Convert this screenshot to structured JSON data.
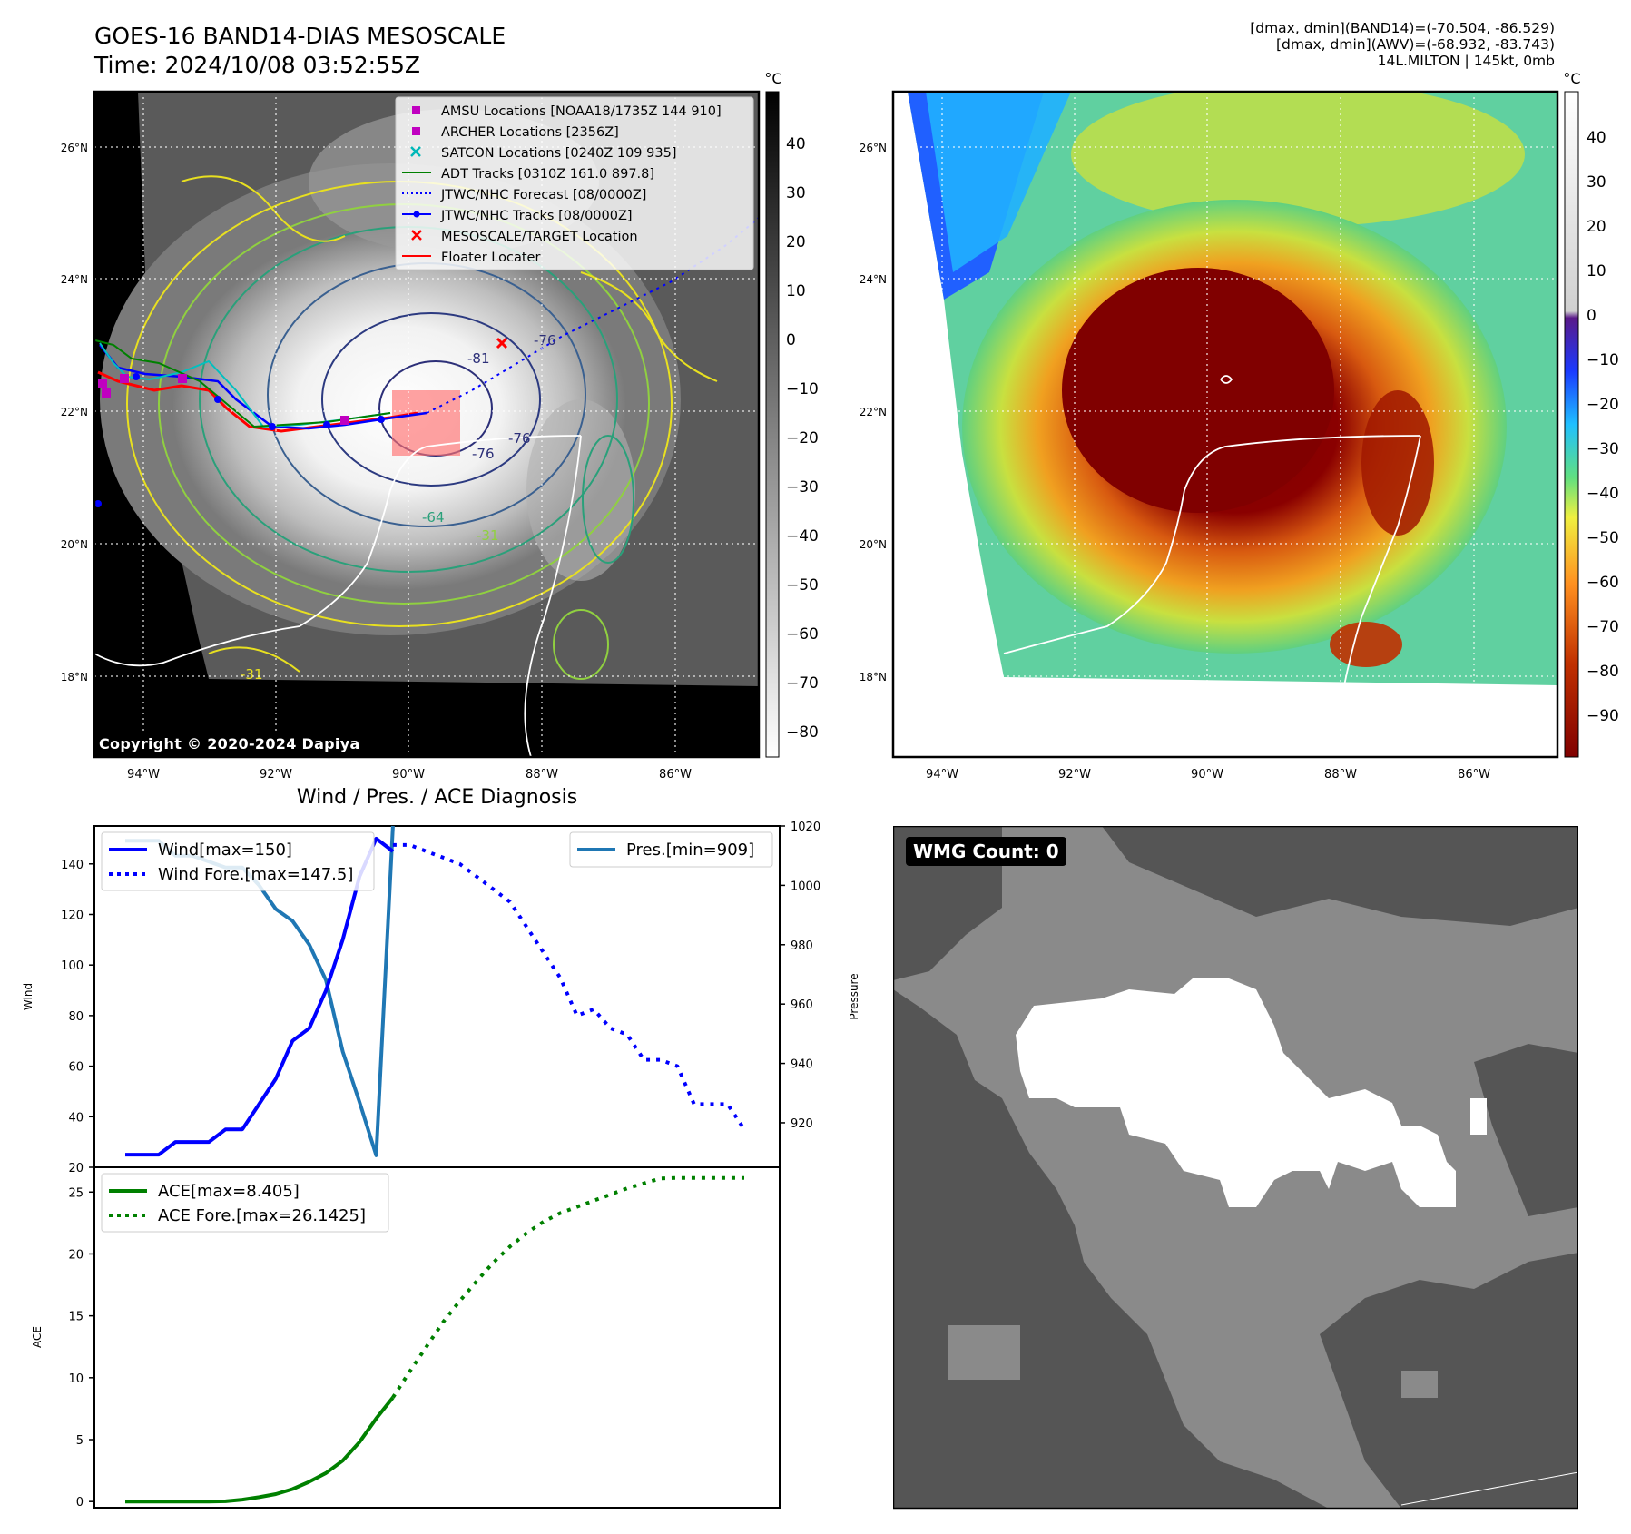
{
  "header": {
    "title_line1": "GOES-16 BAND14-DIAS MESOSCALE",
    "title_line2": "Time: 2024/10/08 03:52:55Z",
    "meta_line1": "[dmax, dmin](BAND14)=(-70.504, -86.529)",
    "meta_line2": "[dmax, dmin](AWV)=(-68.932, -83.743)",
    "meta_line3": "14L.MILTON | 145kt, 0mb"
  },
  "map": {
    "lat_labels": [
      "26°N",
      "24°N",
      "22°N",
      "20°N",
      "18°N"
    ],
    "lon_labels": [
      "94°W",
      "92°W",
      "90°W",
      "88°W",
      "86°W"
    ],
    "contour_labels": [
      "-76",
      "-81",
      "-76",
      "-76",
      "-64",
      "-31",
      "-31"
    ],
    "copyright": "Copyright © 2020-2024 Dapiya",
    "legend": [
      {
        "label": "AMSU Locations [NOAA18/1735Z 144 910]",
        "color": "#c000c0"
      },
      {
        "label": "ARCHER Locations [2356Z]",
        "color": "#c000c0"
      },
      {
        "label": "SATCON Locations [0240Z 109 935]",
        "color": "#00b8b8"
      },
      {
        "label": "ADT Tracks [0310Z 161.0 897.8]",
        "color": "#008000"
      },
      {
        "label": "JTWC/NHC Forecast [08/0000Z]",
        "color": "#0000ff"
      },
      {
        "label": "JTWC/NHC Tracks [08/0000Z]",
        "color": "#0000ff"
      },
      {
        "label": "MESOSCALE/TARGET Location",
        "color": "#ff0000"
      },
      {
        "label": "Floater Locater",
        "color": "#ff0000"
      }
    ]
  },
  "colorbar_left": {
    "unit": "°C",
    "ticks": [
      "40",
      "30",
      "20",
      "10",
      "0",
      "−10",
      "−20",
      "−30",
      "−40",
      "−50",
      "−60",
      "−70",
      "−80"
    ]
  },
  "colorbar_right": {
    "unit": "°C",
    "ticks": [
      "40",
      "30",
      "20",
      "10",
      "0",
      "−10",
      "−20",
      "−30",
      "−40",
      "−50",
      "−60",
      "−70",
      "−80",
      "−90"
    ]
  },
  "chart_data": [
    {
      "type": "line",
      "title": "Wind / Pres. / ACE Diagnosis",
      "ylabel": "Wind",
      "ylabel_right": "Pressure",
      "ylim": [
        20,
        155
      ],
      "ylim_right": [
        905,
        1020
      ],
      "y_ticks": [
        "20",
        "40",
        "60",
        "80",
        "100",
        "120",
        "140"
      ],
      "y_ticks_right": [
        "920",
        "940",
        "960",
        "980",
        "1000",
        "1020"
      ],
      "legend_wind": [
        "Wind[max=150]",
        "Wind Fore.[max=147.5]"
      ],
      "legend_pres": [
        "Pres.[min=909]"
      ],
      "series": [
        {
          "name": "Wind[max=150]",
          "color": "#0000ff",
          "style": "solid",
          "x": [
            0,
            1,
            2,
            3,
            4,
            5,
            6,
            7,
            8,
            9,
            10,
            11,
            12,
            13,
            14,
            15,
            16
          ],
          "values": [
            25,
            25,
            25,
            30,
            30,
            30,
            35,
            35,
            45,
            55,
            70,
            75,
            90,
            110,
            135,
            150,
            145
          ]
        },
        {
          "name": "Wind Fore.[max=147.5]",
          "color": "#0000ff",
          "style": "dotted",
          "x": [
            16,
            17,
            18,
            19,
            20,
            21,
            22,
            23,
            24,
            25,
            26,
            27,
            28,
            29,
            30,
            31,
            32,
            33,
            34,
            35,
            36,
            37
          ],
          "values": [
            147.5,
            147.5,
            145,
            142.5,
            140,
            135,
            130,
            125,
            115,
            105,
            95,
            80,
            82.5,
            75,
            72.5,
            62.5,
            62.5,
            60,
            45,
            45,
            45,
            35
          ]
        },
        {
          "name": "Pres.[min=909]",
          "color": "#1f77b4",
          "style": "solid",
          "axis": "right",
          "x": [
            0,
            1,
            2,
            3,
            4,
            5,
            6,
            7,
            8,
            9,
            10,
            11,
            12,
            13,
            14,
            15,
            16
          ],
          "values": [
            1015,
            1015,
            1015,
            1010,
            1010,
            1008,
            1006,
            1006,
            1000,
            992,
            988,
            980,
            968,
            944,
            927,
            909,
            1020
          ]
        }
      ]
    },
    {
      "type": "line",
      "ylabel": "ACE",
      "ylim": [
        -0.5,
        27
      ],
      "y_ticks": [
        "0",
        "5",
        "10",
        "15",
        "20",
        "25"
      ],
      "legend": [
        "ACE[max=8.405]",
        "ACE Fore.[max=26.1425]"
      ],
      "series": [
        {
          "name": "ACE[max=8.405]",
          "color": "#008000",
          "style": "solid",
          "x": [
            0,
            1,
            2,
            3,
            4,
            5,
            6,
            7,
            8,
            9,
            10,
            11,
            12,
            13,
            14,
            15,
            16
          ],
          "values": [
            0,
            0,
            0,
            0,
            0,
            0,
            0.02,
            0.15,
            0.35,
            0.6,
            1.0,
            1.6,
            2.3,
            3.3,
            4.8,
            6.7,
            8.405
          ]
        },
        {
          "name": "ACE Fore.[max=26.1425]",
          "color": "#008000",
          "style": "dotted",
          "x": [
            16,
            17,
            18,
            19,
            20,
            21,
            22,
            23,
            24,
            25,
            26,
            27,
            28,
            29,
            30,
            31,
            32,
            33,
            34,
            35,
            36,
            37
          ],
          "values": [
            8.405,
            10.5,
            12.5,
            14.5,
            16.2,
            17.8,
            19.3,
            20.6,
            21.7,
            22.6,
            23.3,
            23.8,
            24.3,
            24.8,
            25.3,
            25.7,
            26.1,
            26.1425,
            26.1425,
            26.1425,
            26.1425,
            26.1425
          ]
        }
      ]
    }
  ],
  "wmg": {
    "label": "WMG Count: 0"
  }
}
